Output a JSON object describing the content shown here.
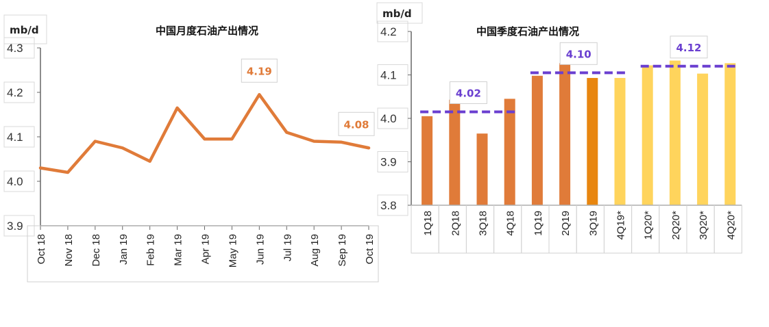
{
  "chart_data": [
    {
      "type": "line",
      "title": "中国月度石油产出情况",
      "ylabel": "mb/d",
      "xlabel": "",
      "categories": [
        "Oct 18",
        "Nov 18",
        "Dec 18",
        "Jan 19",
        "Feb 19",
        "Mar 19",
        "Apr 19",
        "May 19",
        "Jun 19",
        "Jul 19",
        "Aug 19",
        "Sep 19",
        "Oct 19"
      ],
      "values": [
        4.03,
        4.02,
        4.09,
        4.075,
        4.045,
        4.165,
        4.095,
        4.095,
        4.195,
        4.11,
        4.09,
        4.088,
        4.075
      ],
      "ylim": [
        3.9,
        4.3
      ],
      "yticks": [
        "3.9",
        "4.0",
        "4.1",
        "4.2",
        "4.3"
      ],
      "annotations": [
        {
          "category": "Jun 19",
          "text": "4.19"
        },
        {
          "category": "Oct 19",
          "text": "4.08"
        }
      ],
      "color": "#E07B39",
      "grid": false,
      "legend": "none"
    },
    {
      "type": "bar",
      "title": "中国季度石油产出情况",
      "ylabel": "mb/d",
      "xlabel": "",
      "categories": [
        "1Q18",
        "2Q18",
        "3Q18",
        "4Q18",
        "1Q19",
        "2Q19",
        "3Q19",
        "4Q19*",
        "1Q20*",
        "2Q20*",
        "3Q20*",
        "4Q20*"
      ],
      "values": [
        4.005,
        4.043,
        3.965,
        4.045,
        4.098,
        4.127,
        4.093,
        4.093,
        4.122,
        4.133,
        4.103,
        4.127
      ],
      "colors": [
        "#E07B39",
        "#E07B39",
        "#E07B39",
        "#E07B39",
        "#E07B39",
        "#E07B39",
        "#E8860F",
        "#FFD45C",
        "#FFD45C",
        "#FFD45C",
        "#FFD45C",
        "#FFD45C"
      ],
      "ylim": [
        3.8,
        4.2
      ],
      "yticks": [
        "3.8",
        "3.9",
        "4.0",
        "4.1",
        "4.2"
      ],
      "averages": [
        {
          "from": "1Q18",
          "to": "4Q18",
          "value": 4.015,
          "text": "4.02"
        },
        {
          "from": "1Q19",
          "to": "4Q19*",
          "value": 4.105,
          "text": "4.10"
        },
        {
          "from": "1Q20*",
          "to": "4Q20*",
          "value": 4.12,
          "text": "4.12"
        }
      ],
      "average_color": "#6A3FD0",
      "grid": false,
      "legend": "none"
    }
  ]
}
